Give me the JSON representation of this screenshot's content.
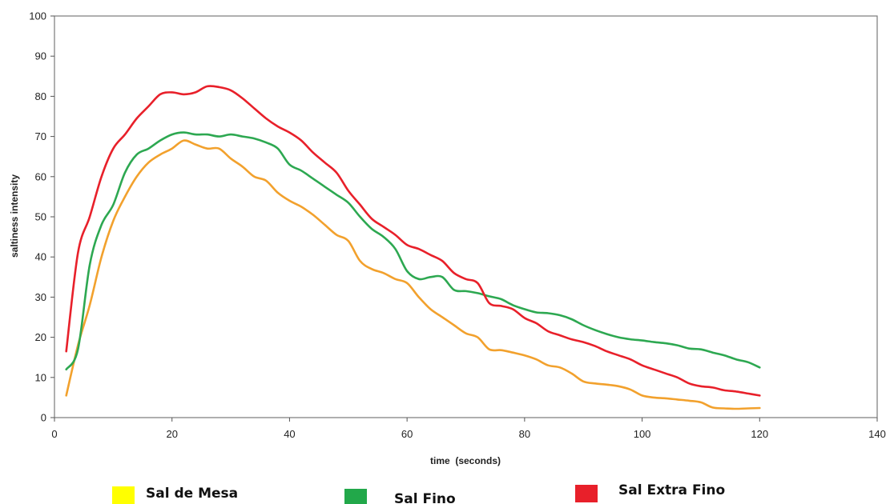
{
  "chart_data": {
    "type": "line",
    "title": "",
    "xlabel": "time  (seconds)",
    "ylabel": "saltiness intensity",
    "xlim": [
      0,
      140
    ],
    "ylim": [
      0,
      100
    ],
    "xticks": [
      0,
      20,
      40,
      60,
      80,
      100,
      120,
      140
    ],
    "yticks": [
      0,
      10,
      20,
      30,
      40,
      50,
      60,
      70,
      80,
      90,
      100
    ],
    "grid": false,
    "legend_position": "bottom",
    "series": [
      {
        "name": "Sal de Mesa",
        "line_color": "#f2a12d",
        "legend_color": "#ffff00",
        "x": [
          2,
          4,
          6,
          8,
          10,
          12,
          14,
          16,
          18,
          20,
          22,
          24,
          26,
          28,
          30,
          32,
          34,
          36,
          38,
          40,
          42,
          44,
          46,
          48,
          50,
          52,
          54,
          56,
          58,
          60,
          62,
          64,
          66,
          68,
          70,
          72,
          74,
          76,
          78,
          80,
          82,
          84,
          86,
          88,
          90,
          92,
          94,
          96,
          98,
          100,
          102,
          104,
          106,
          108,
          110,
          112,
          114,
          116,
          118,
          120
        ],
        "y": [
          5.5,
          18,
          28,
          40,
          49,
          55,
          60,
          63.5,
          65.5,
          67,
          69,
          68,
          67,
          67,
          64.5,
          62.5,
          60,
          59,
          56,
          54,
          52.5,
          50.5,
          48,
          45.5,
          44,
          39,
          37,
          36,
          34.5,
          33.5,
          30,
          27,
          25,
          23,
          21,
          20,
          17,
          16.8,
          16.2,
          15.5,
          14.5,
          13,
          12.5,
          11,
          9,
          8.5,
          8.2,
          7.8,
          7,
          5.5,
          5,
          4.8,
          4.5,
          4.2,
          3.8,
          2.5,
          2.3,
          2.2,
          2.3,
          2.4
        ]
      },
      {
        "name": "Sal Fino",
        "line_color": "#2da851",
        "legend_color": "#22a84a",
        "x": [
          2,
          4,
          6,
          8,
          10,
          12,
          14,
          16,
          18,
          20,
          22,
          24,
          26,
          28,
          30,
          32,
          34,
          36,
          38,
          40,
          42,
          44,
          46,
          48,
          50,
          52,
          54,
          56,
          58,
          60,
          62,
          64,
          66,
          68,
          70,
          72,
          74,
          76,
          78,
          80,
          82,
          84,
          86,
          88,
          90,
          92,
          94,
          96,
          98,
          100,
          102,
          104,
          106,
          108,
          110,
          112,
          114,
          116,
          118,
          120
        ],
        "y": [
          12,
          17,
          38,
          48,
          53,
          61,
          65.5,
          67,
          69,
          70.5,
          71,
          70.5,
          70.5,
          70,
          70.5,
          70,
          69.5,
          68.5,
          67,
          63,
          61.5,
          59.5,
          57.5,
          55.5,
          53.5,
          50,
          47,
          45,
          42,
          36.5,
          34.5,
          35,
          35,
          31.8,
          31.5,
          31,
          30.2,
          29.5,
          28,
          27,
          26.2,
          26,
          25.5,
          24.5,
          23,
          21.8,
          20.8,
          20,
          19.5,
          19.2,
          18.8,
          18.5,
          18,
          17.2,
          17,
          16.2,
          15.5,
          14.5,
          13.8,
          12.5
        ]
      },
      {
        "name": "Sal Extra Fino",
        "line_color": "#e8202a",
        "legend_color": "#e8202a",
        "x": [
          2,
          4,
          6,
          8,
          10,
          12,
          14,
          16,
          18,
          20,
          22,
          24,
          26,
          28,
          30,
          32,
          34,
          36,
          38,
          40,
          42,
          44,
          46,
          48,
          50,
          52,
          54,
          56,
          58,
          60,
          62,
          64,
          66,
          68,
          70,
          72,
          74,
          76,
          78,
          80,
          82,
          84,
          86,
          88,
          90,
          92,
          94,
          96,
          98,
          100,
          102,
          104,
          106,
          108,
          110,
          112,
          114,
          116,
          118,
          120
        ],
        "y": [
          16.5,
          41,
          50,
          60,
          67,
          70.5,
          74.5,
          77.5,
          80.5,
          81,
          80.5,
          81,
          82.5,
          82.3,
          81.5,
          79.5,
          77,
          74.5,
          72.5,
          71,
          69,
          66,
          63.5,
          61,
          56.5,
          53,
          49.5,
          47.5,
          45.5,
          43,
          42,
          40.5,
          39,
          36,
          34.5,
          33.5,
          28.5,
          27.8,
          27,
          24.8,
          23.5,
          21.5,
          20.5,
          19.5,
          18.8,
          17.8,
          16.5,
          15.5,
          14.5,
          13,
          12,
          11,
          10,
          8.5,
          7.8,
          7.5,
          6.8,
          6.5,
          6,
          5.5
        ]
      }
    ]
  }
}
